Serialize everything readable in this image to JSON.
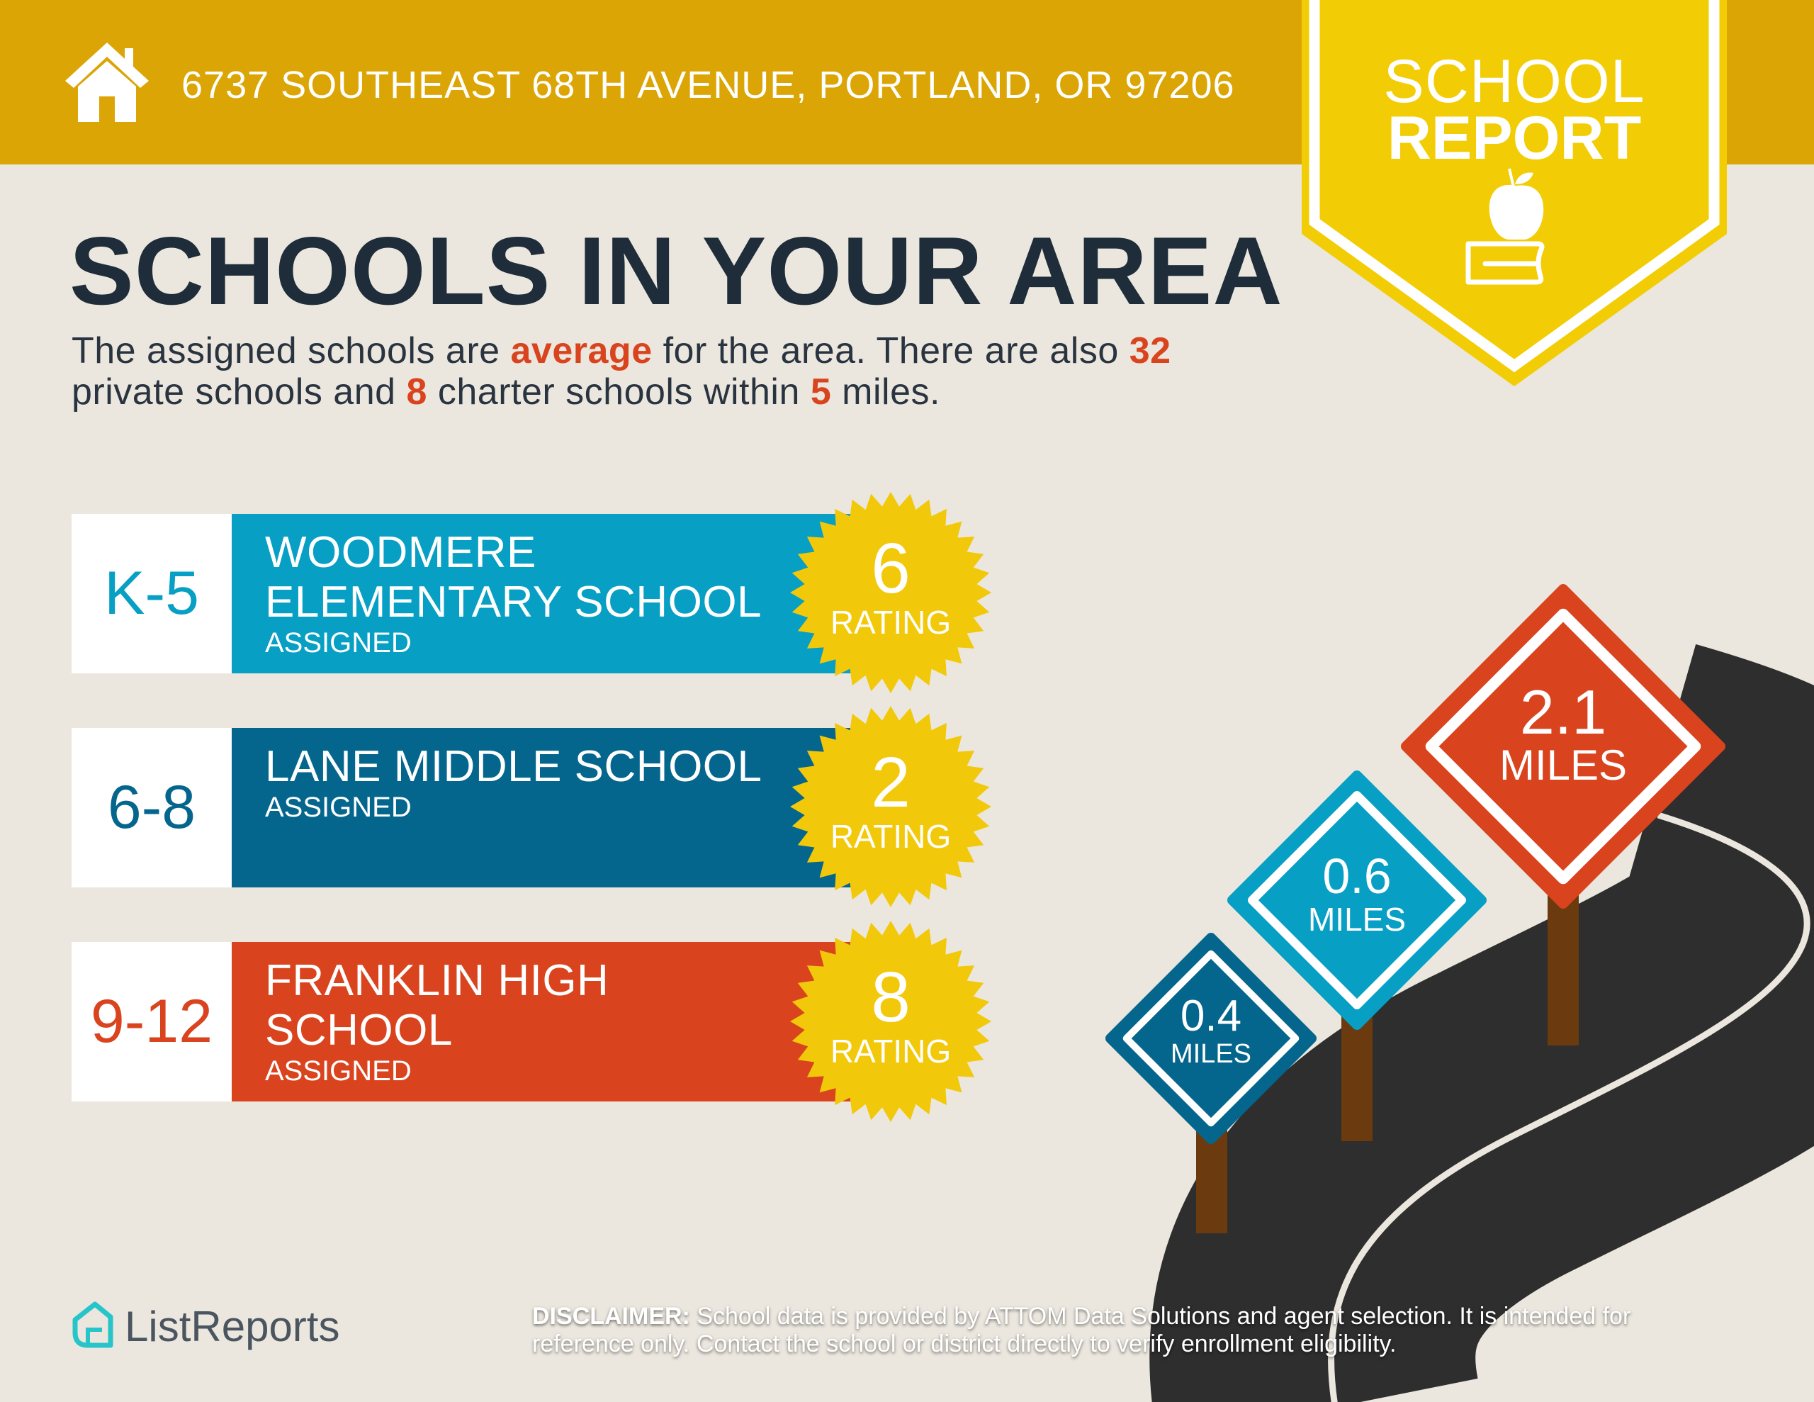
{
  "header": {
    "address": "6737 SOUTHEAST 68TH AVENUE, PORTLAND, OR 97206",
    "icon": "house-icon"
  },
  "banner": {
    "line1": "SCHOOL",
    "line2": "REPORT",
    "icon": "apple-books-icon"
  },
  "title": "SCHOOLS IN YOUR AREA",
  "summary": {
    "p1": "The assigned schools are ",
    "quality": "average",
    "p2": " for the area. There are also ",
    "private_count": "32",
    "p3": " private schools and ",
    "charter_count": "8",
    "p4": " charter schools within ",
    "radius": "5",
    "p5": " miles."
  },
  "schools": [
    {
      "grade": "K-5",
      "name_line1": "WOODMERE",
      "name_line2": "ELEMENTARY SCHOOL",
      "status": "ASSIGNED",
      "rating": "6",
      "rating_label": "RATING",
      "color": "#079FC4",
      "distance": "0.6",
      "distance_unit": "MILES"
    },
    {
      "grade": "6-8",
      "name_line1": "LANE MIDDLE SCHOOL",
      "name_line2": "",
      "status": "ASSIGNED",
      "rating": "2",
      "rating_label": "RATING",
      "color": "#05668D",
      "distance": "0.4",
      "distance_unit": "MILES"
    },
    {
      "grade": "9-12",
      "name_line1": "FRANKLIN HIGH",
      "name_line2": "SCHOOL",
      "status": "ASSIGNED",
      "rating": "8",
      "rating_label": "RATING",
      "color": "#D9441F",
      "distance": "2.1",
      "distance_unit": "MILES"
    }
  ],
  "footer": {
    "brand": "ListReports",
    "disclaimer_label": "DISCLAIMER:",
    "disclaimer_text": " School data is provided by ATTOM Data Solutions and agent selection. It is intended for reference only. Contact the school or district directly to verify enrollment eligibility."
  },
  "colors": {
    "header": "#DBA506",
    "banner": "#F2CD05",
    "background": "#EBE7DE",
    "star": "#F2C80A",
    "title": "#1F2D3A",
    "highlight": "#D9441F"
  }
}
